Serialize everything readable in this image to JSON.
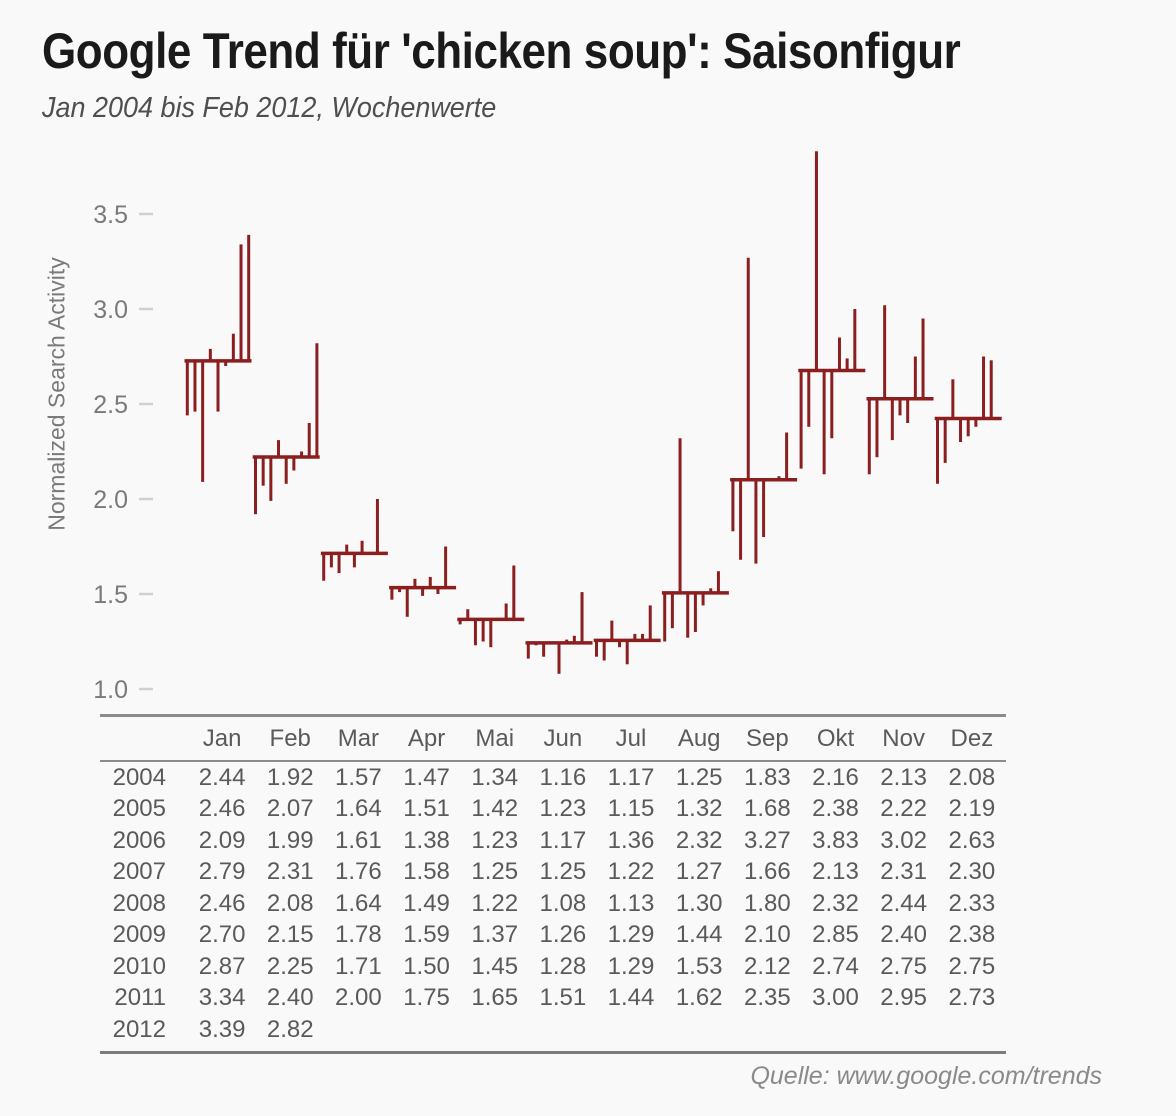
{
  "header": {
    "title": "Google Trend für 'chicken soup': Saisonfigur",
    "subtitle": "Jan 2004 bis Feb 2012, Wochenwerte"
  },
  "chart_data": {
    "type": "bar",
    "subtype": "seasonal-subseries-monthplot: for each month a horizontal segment marks the mean across years; vertical bars run from that mean to each year's value",
    "title": "Google Trend für 'chicken soup': Saisonfigur",
    "subtitle": "Jan 2004 bis Feb 2012, Wochenwerte",
    "ylabel": "Normalized Search Activity",
    "xlabel": "",
    "categories": [
      "Jan",
      "Feb",
      "Mar",
      "Apr",
      "Mai",
      "Jun",
      "Jul",
      "Aug",
      "Sep",
      "Okt",
      "Nov",
      "Dez"
    ],
    "yticks": [
      3.5,
      3.0,
      2.5,
      2.0,
      1.5,
      1.0
    ],
    "ylim": [
      0.95,
      3.9
    ],
    "grid": false,
    "legend": "none",
    "bar_color": "#8b1f1f",
    "tick_color": "#d0d0d0",
    "series": [
      {
        "name": "2004",
        "values": [
          2.44,
          1.92,
          1.57,
          1.47,
          1.34,
          1.16,
          1.17,
          1.25,
          1.83,
          2.16,
          2.13,
          2.08
        ]
      },
      {
        "name": "2005",
        "values": [
          2.46,
          2.07,
          1.64,
          1.51,
          1.42,
          1.23,
          1.15,
          1.32,
          1.68,
          2.38,
          2.22,
          2.19
        ]
      },
      {
        "name": "2006",
        "values": [
          2.09,
          1.99,
          1.61,
          1.38,
          1.23,
          1.17,
          1.36,
          2.32,
          3.27,
          3.83,
          3.02,
          2.63
        ]
      },
      {
        "name": "2007",
        "values": [
          2.79,
          2.31,
          1.76,
          1.58,
          1.25,
          1.25,
          1.22,
          1.27,
          1.66,
          2.13,
          2.31,
          2.3
        ]
      },
      {
        "name": "2008",
        "values": [
          2.46,
          2.08,
          1.64,
          1.49,
          1.22,
          1.08,
          1.13,
          1.3,
          1.8,
          2.32,
          2.44,
          2.33
        ]
      },
      {
        "name": "2009",
        "values": [
          2.7,
          2.15,
          1.78,
          1.59,
          1.37,
          1.26,
          1.29,
          1.44,
          2.1,
          2.85,
          2.4,
          2.38
        ]
      },
      {
        "name": "2010",
        "values": [
          2.87,
          2.25,
          1.71,
          1.5,
          1.45,
          1.28,
          1.29,
          1.53,
          2.12,
          2.74,
          2.75,
          2.75
        ]
      },
      {
        "name": "2011",
        "values": [
          3.34,
          2.4,
          2.0,
          1.75,
          1.65,
          1.51,
          1.44,
          1.62,
          2.35,
          3.0,
          2.95,
          2.73
        ]
      },
      {
        "name": "2012",
        "values": [
          3.39,
          2.82
        ]
      }
    ]
  },
  "footer": {
    "source": "Quelle: www.google.com/trends"
  }
}
